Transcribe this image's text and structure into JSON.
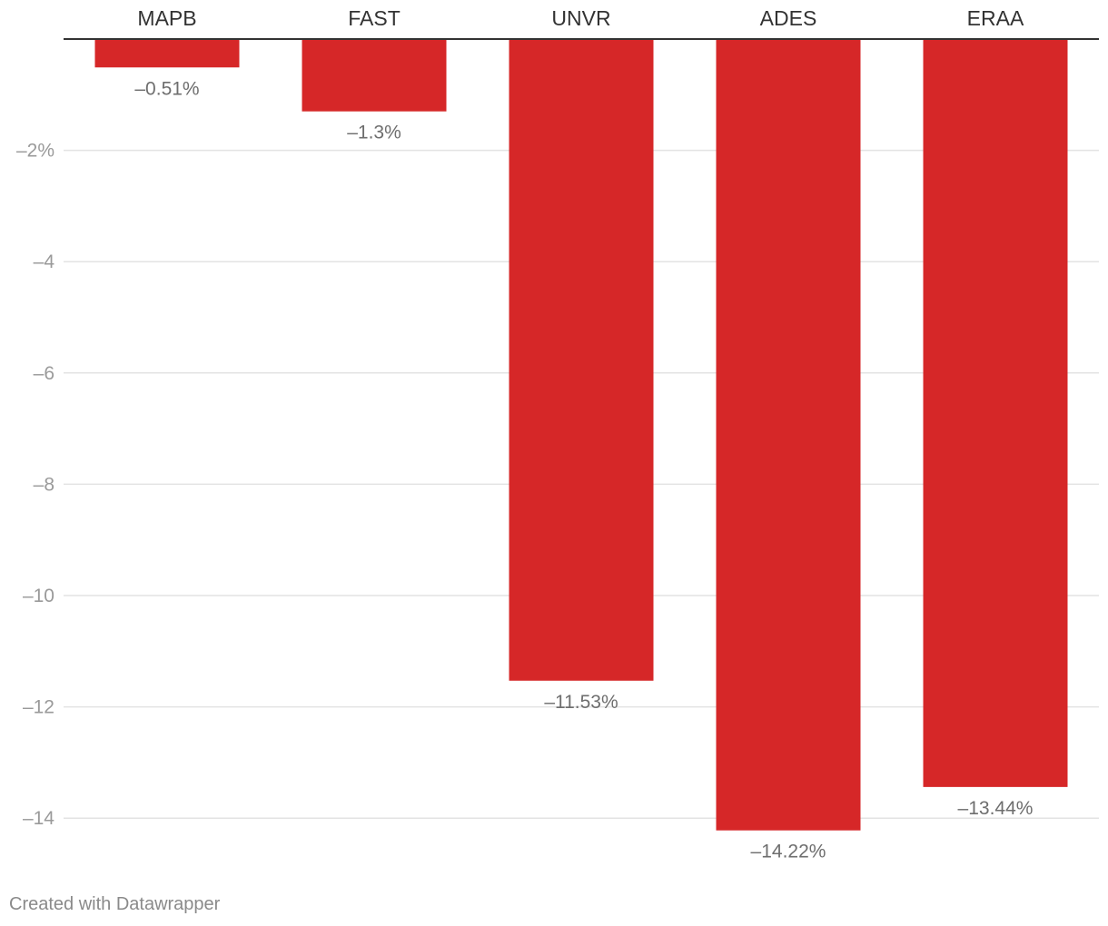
{
  "chart_data": {
    "type": "bar",
    "orientation": "vertical",
    "categories": [
      "MAPB",
      "FAST",
      "UNVR",
      "ADES",
      "ERAA"
    ],
    "values": [
      -0.51,
      -1.3,
      -11.53,
      -14.22,
      -13.44
    ],
    "value_labels": [
      "–0.51%",
      "–1.3%",
      "–11.53%",
      "–14.22%",
      "–13.44%"
    ],
    "ylim": [
      -14.2,
      0
    ],
    "yticks": [
      -2,
      -4,
      -6,
      -8,
      -10,
      -12,
      -14
    ],
    "ytick_labels": [
      "–2%",
      "–4",
      "–6",
      "–8",
      "–10",
      "–12",
      "–14"
    ],
    "category_axis_position": "top",
    "grid": true,
    "bar_color": "#d62728",
    "title": "",
    "xlabel": "",
    "ylabel": ""
  },
  "footer": {
    "credit": "Created with Datawrapper"
  }
}
